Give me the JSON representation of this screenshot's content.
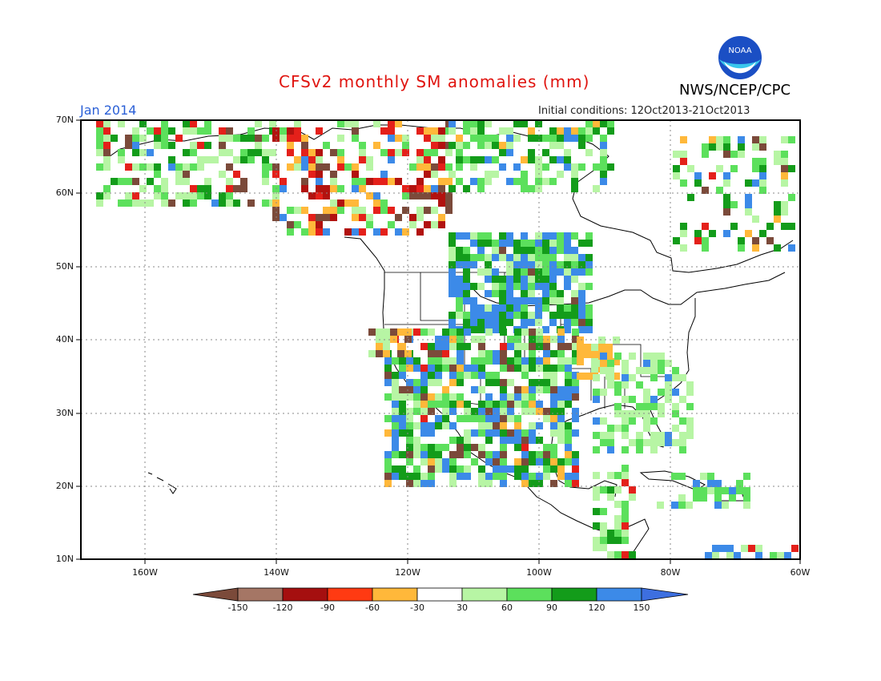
{
  "header": {
    "title": "CFSv2 monthly SM anomalies (mm)",
    "agency": "NWS/NCEP/CPC",
    "month": "Jan 2014",
    "initial_conditions": "Initial conditions: 12Oct2013-21Oct2013",
    "logo_text": "NOAA"
  },
  "axes": {
    "lat_labels": [
      "70N",
      "60N",
      "50N",
      "40N",
      "30N",
      "20N",
      "10N"
    ],
    "lon_labels": [
      "160W",
      "140W",
      "120W",
      "100W",
      "80W",
      "60W"
    ]
  },
  "colorbar": {
    "labels": [
      "-150",
      "-120",
      "-90",
      "-60",
      "-30",
      "30",
      "60",
      "90",
      "120",
      "150"
    ],
    "colors": [
      "#7b4a3a",
      "#a57665",
      "#a50f0f",
      "#e4201a",
      "#ff5a1f",
      "#ffb83a",
      "#ffffff",
      "#b7f5a4",
      "#5ce05c",
      "#139c1a",
      "#3c8ae8",
      "#3d6fe0"
    ]
  },
  "map_data": {
    "anomaly_colors": {
      "brown": "#7b4a3a",
      "dark_red": "#b2120f",
      "red": "#e4201a",
      "orange": "#ffb83a",
      "light_green": "#b7f5a4",
      "green": "#5ce05c",
      "dark_green": "#139c1a",
      "blue": "#3c8ae8"
    }
  }
}
